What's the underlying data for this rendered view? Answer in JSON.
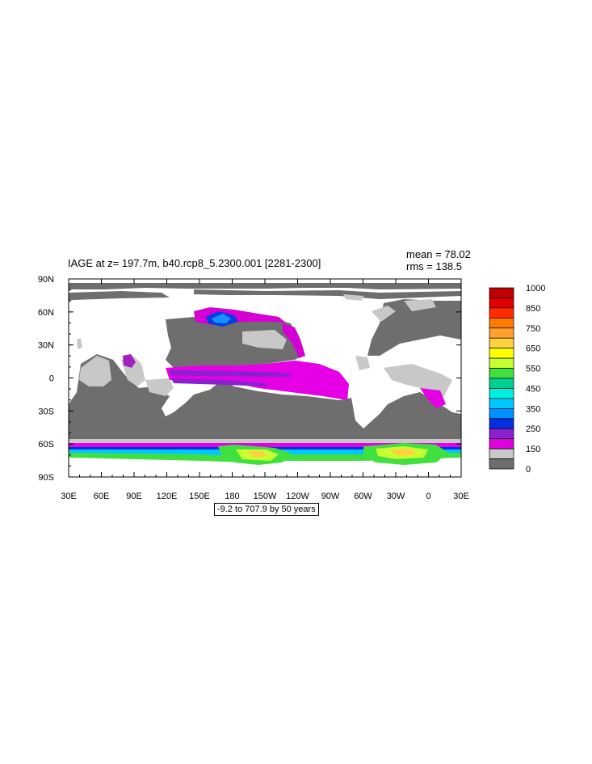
{
  "title": "IAGE at z= 197.7m, b40.rcp8_5.2300.001 [2281-2300]",
  "stats": {
    "mean": "mean = 78.02",
    "rms": "rms = 138.5"
  },
  "lon_ticks": [
    "30E",
    "60E",
    "90E",
    "120E",
    "150E",
    "180",
    "150W",
    "120W",
    "90W",
    "60W",
    "30W",
    "0",
    "30E"
  ],
  "lat_ticks": [
    "90N",
    "60N",
    "30N",
    "0",
    "30S",
    "60S",
    "90S"
  ],
  "colorbar": {
    "labels": [
      "1000",
      "850",
      "750",
      "650",
      "550",
      "450",
      "350",
      "250",
      "150",
      "0"
    ],
    "colors": [
      "#c00000",
      "#e00000",
      "#ff2a00",
      "#ff7a00",
      "#ffa030",
      "#ffd040",
      "#ffff00",
      "#c8ff30",
      "#40e040",
      "#00d090",
      "#00f0e0",
      "#00c8ff",
      "#0090ff",
      "#0030e0",
      "#8a20d0",
      "#e000e0",
      "#c8c8c8",
      "#6e6e6e"
    ]
  },
  "range_note": "-9.2 to 707.9 by 50 years"
}
